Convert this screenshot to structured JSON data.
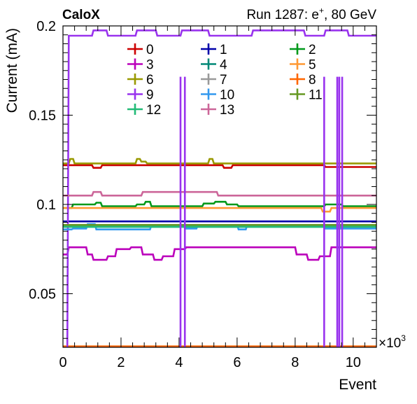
{
  "header": {
    "left_label": "CaloX",
    "run_label_prefix": "Run 1287: e",
    "run_label_sup": "+",
    "run_label_suffix": ", 80 GeV"
  },
  "chart_data": {
    "type": "line",
    "title": "",
    "xlabel": "Event",
    "ylabel": "Current (mA)",
    "x_multiplier": "×10",
    "x_multiplier_exp": "3",
    "xlim": [
      0,
      10.8
    ],
    "ylim": [
      0.02,
      0.2
    ],
    "xticks": [
      0,
      2,
      4,
      6,
      8,
      10
    ],
    "xtick_labels": [
      "0",
      "2",
      "4",
      "6",
      "8",
      "10"
    ],
    "yticks": [
      0.05,
      0.1,
      0.15,
      0.2
    ],
    "ytick_labels": [
      "0.05",
      "0.1",
      "0.15",
      "0.2"
    ],
    "grid": false,
    "legend_position": "top-center",
    "spike_events": [
      4.05,
      4.2,
      9.0,
      9.45,
      9.52,
      9.62
    ],
    "series": [
      {
        "name": "0",
        "color": "#cc0000",
        "x": [
          0,
          1.0,
          1.05,
          1.3,
          1.35,
          5.5,
          5.55,
          5.8,
          5.85,
          9.0,
          9.05,
          10.8
        ],
        "y": [
          0.122,
          0.122,
          0.1205,
          0.1205,
          0.122,
          0.122,
          0.1205,
          0.1205,
          0.122,
          0.122,
          0.121,
          0.121
        ]
      },
      {
        "name": "1",
        "color": "#0000aa",
        "x": [
          0,
          10.8
        ],
        "y": [
          0.0905,
          0.0905
        ]
      },
      {
        "name": "2",
        "color": "#00991a",
        "x": [
          0,
          0.3,
          0.35,
          1.1,
          1.15,
          1.3,
          1.35,
          2.5,
          2.55,
          2.8,
          2.85,
          3.0,
          3.05,
          4.8,
          4.85,
          5.2,
          5.25,
          5.6,
          5.65,
          6.0,
          6.05,
          9.0,
          9.05,
          9.6,
          9.65,
          10.8
        ],
        "y": [
          0.098,
          0.098,
          0.1,
          0.1,
          0.101,
          0.101,
          0.099,
          0.099,
          0.1,
          0.1,
          0.1015,
          0.1015,
          0.099,
          0.099,
          0.1005,
          0.1005,
          0.1015,
          0.1015,
          0.1,
          0.1,
          0.099,
          0.099,
          0.1,
          0.1,
          0.099,
          0.099
        ]
      },
      {
        "name": "3",
        "color": "#bb00bb",
        "x": [
          0,
          0.15,
          0.2,
          0.8,
          0.85,
          1.0,
          1.05,
          1.5,
          1.55,
          1.8,
          1.85,
          2.3,
          2.35,
          2.7,
          2.75,
          3.1,
          3.15,
          3.4,
          3.45,
          3.8,
          3.85,
          4.2,
          4.25,
          8.0,
          8.05,
          8.4,
          8.45,
          8.8,
          8.85,
          9.2,
          9.25,
          10.8
        ],
        "y": [
          0.072,
          0.072,
          0.076,
          0.076,
          0.072,
          0.072,
          0.069,
          0.069,
          0.071,
          0.071,
          0.075,
          0.075,
          0.076,
          0.076,
          0.072,
          0.072,
          0.069,
          0.069,
          0.071,
          0.071,
          0.075,
          0.075,
          0.076,
          0.076,
          0.072,
          0.072,
          0.069,
          0.069,
          0.071,
          0.071,
          0.076,
          0.076
        ]
      },
      {
        "name": "4",
        "color": "#008877",
        "x": [
          0,
          10.8
        ],
        "y": [
          0.0875,
          0.0875
        ]
      },
      {
        "name": "5",
        "color": "#ff9933",
        "x": [
          0,
          8.9,
          8.95,
          9.2,
          9.25,
          10.8
        ],
        "y": [
          0.098,
          0.098,
          0.096,
          0.096,
          0.098,
          0.098
        ]
      },
      {
        "name": "6",
        "color": "#999900",
        "x": [
          0,
          0.2,
          0.25,
          0.35,
          0.4,
          2.5,
          2.55,
          2.65,
          2.7,
          2.85,
          2.9,
          5.0,
          5.05,
          5.15,
          5.2,
          10.8
        ],
        "y": [
          0.123,
          0.123,
          0.1255,
          0.1255,
          0.123,
          0.123,
          0.1255,
          0.1255,
          0.124,
          0.124,
          0.123,
          0.123,
          0.1255,
          0.1255,
          0.123,
          0.123
        ]
      },
      {
        "name": "7",
        "color": "#999999",
        "x": [
          0,
          10.8
        ],
        "y": [
          0.02,
          0.02
        ]
      },
      {
        "name": "8",
        "color": "#ff6600",
        "x": [
          0,
          10.8
        ],
        "y": [
          0.0205,
          0.0205
        ]
      },
      {
        "name": "9",
        "color": "#9933ee",
        "x": [
          0,
          0.15,
          0.2,
          1.0,
          1.05,
          1.5,
          1.55,
          2.5,
          2.55,
          3.2,
          3.25,
          4.05,
          4.1,
          5.0,
          5.05,
          6.5,
          6.55,
          8.3,
          8.35,
          9.0,
          9.05,
          9.8,
          9.85,
          10.8
        ],
        "y": [
          0.0185,
          0.0185,
          0.1945,
          0.1945,
          0.1975,
          0.1975,
          0.1945,
          0.1945,
          0.1975,
          0.1975,
          0.1945,
          0.1945,
          0.1975,
          0.1975,
          0.1945,
          0.1945,
          0.1975,
          0.1975,
          0.1945,
          0.1945,
          0.1975,
          0.1975,
          0.1945,
          0.1945
        ]
      },
      {
        "name": "10",
        "color": "#3399ee",
        "x": [
          0,
          0.3,
          0.35,
          0.8,
          0.85,
          1.1,
          1.15,
          3.0,
          3.05,
          4.2,
          4.25,
          4.6,
          4.65,
          6.0,
          6.05,
          6.3,
          6.35,
          9.0,
          9.05,
          10.8
        ],
        "y": [
          0.086,
          0.086,
          0.0865,
          0.0865,
          0.089,
          0.089,
          0.086,
          0.086,
          0.0885,
          0.0885,
          0.0865,
          0.0865,
          0.0885,
          0.0885,
          0.086,
          0.086,
          0.0885,
          0.0885,
          0.0865,
          0.0865
        ]
      },
      {
        "name": "11",
        "color": "#669922",
        "x": [
          0,
          10.8
        ],
        "y": [
          0.0885,
          0.0885
        ]
      },
      {
        "name": "12",
        "color": "#22bb77",
        "x": [
          0,
          10.8
        ],
        "y": [
          0.0875,
          0.0875
        ]
      },
      {
        "name": "13",
        "color": "#cc6699",
        "x": [
          0,
          1.0,
          1.05,
          1.3,
          1.35,
          2.7,
          2.75,
          5.3,
          5.35,
          10.8
        ],
        "y": [
          0.105,
          0.105,
          0.107,
          0.107,
          0.105,
          0.105,
          0.107,
          0.107,
          0.105,
          0.105
        ]
      }
    ]
  }
}
